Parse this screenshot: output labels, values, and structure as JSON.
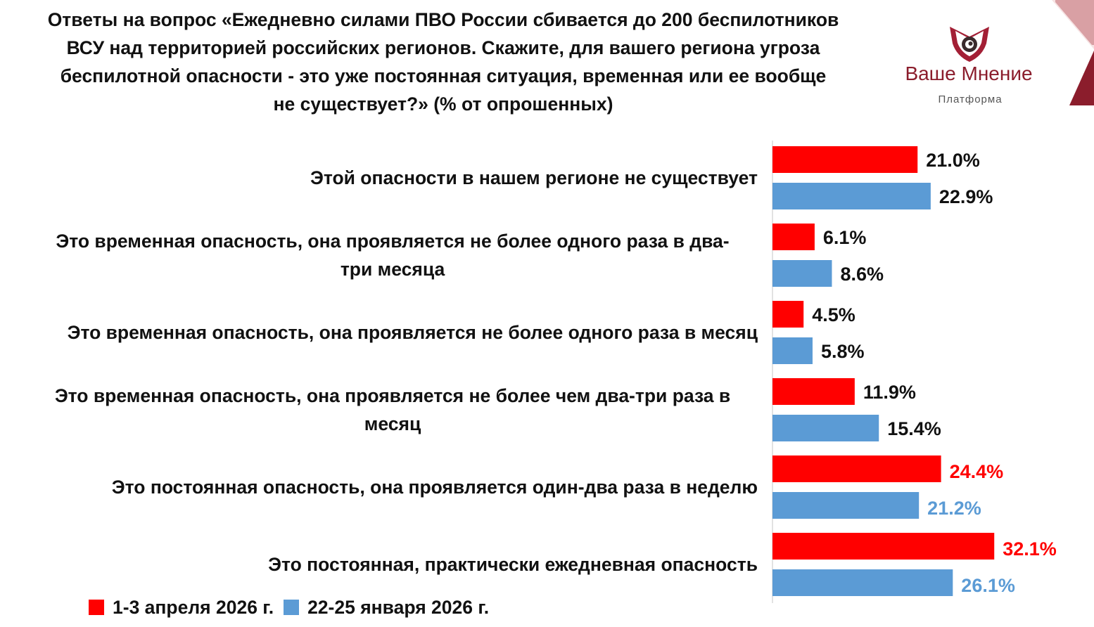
{
  "title_lines": [
    "Ответы на вопрос «Ежедневно силами ПВО России сбивается до 200 беспилотников",
    "ВСУ над территорией российских регионов. Скажите, для вашего региона угроза",
    "беспилотной опасности - это уже постоянная ситуация, временная или ее вообще",
    "не существует?» (% от опрошенных)"
  ],
  "logo": {
    "name": "Ваше Мнение",
    "subtitle": "Платформа",
    "accent_color": "#8b1d2c"
  },
  "colors": {
    "series1": "#ff0000",
    "series2": "#5b9bd5",
    "highlight": "#ff0000"
  },
  "chart_data": {
    "type": "bar",
    "orientation": "horizontal",
    "categories": [
      "Этой опасности в нашем регионе не существует",
      "Это временная опасность, она проявляется не более одного раза в два-три месяца",
      "Это временная опасность, она проявляется не более одного раза в месяц",
      "Это временная опасность, она проявляется не более чем два-три раза в месяц",
      "Это постоянная опасность, она проявляется один-два раза в неделю",
      "Это постоянная, практически ежедневная опасность"
    ],
    "category_lines": [
      [
        "Этой опасности в нашем регионе не существует"
      ],
      [
        "Это временная опасность, она проявляется не более одного раза в два-",
        "три месяца"
      ],
      [
        "Это временная опасность, она проявляется не более одного раза в месяц"
      ],
      [
        "Это временная опасность, она проявляется не более чем два-три раза в",
        "месяц"
      ],
      [
        "Это постоянная опасность, она проявляется один-два раза в неделю"
      ],
      [
        "Это постоянная, практически ежедневная опасность"
      ]
    ],
    "series": [
      {
        "name": "1-3 апреля 2026 г.",
        "color": "#ff0000",
        "values": [
          21.0,
          6.1,
          4.5,
          11.9,
          24.4,
          32.1
        ],
        "labels": [
          "21.0%",
          "6.1%",
          "4.5%",
          "11.9%",
          "24.4%",
          "32.1%"
        ],
        "highlight": [
          false,
          false,
          false,
          false,
          true,
          true
        ]
      },
      {
        "name": "22-25 января 2026 г.",
        "color": "#5b9bd5",
        "values": [
          22.9,
          8.6,
          5.8,
          15.4,
          21.2,
          26.1
        ],
        "labels": [
          "22.9%",
          "8.6%",
          "5.8%",
          "15.4%",
          "21.2%",
          "26.1%"
        ],
        "highlight": [
          false,
          false,
          false,
          false,
          true,
          true
        ]
      }
    ],
    "xlim": [
      0,
      35
    ],
    "grid": false,
    "legend_position": "bottom-left"
  }
}
